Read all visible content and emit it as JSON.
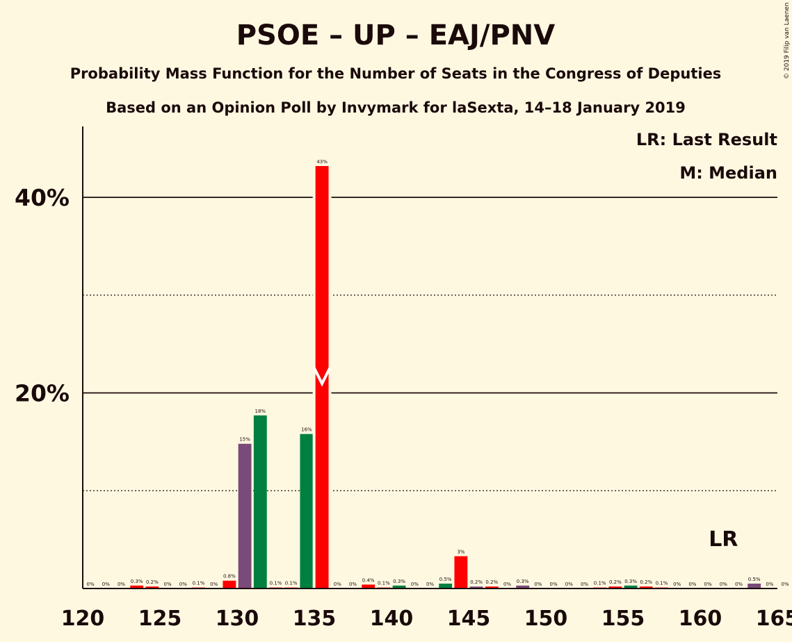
{
  "chart_data": {
    "type": "bar",
    "title": "PSOE – UP – EAJ/PNV",
    "subtitle": "Probability Mass Function for the Number of Seats in the Congress of Deputies",
    "subtitle2": "Based on an Opinion Poll by Invymark for laSexta, 14–18 January 2019",
    "copyright": "© 2019 Filip van Laenen",
    "legend": {
      "last_result": "LR: Last Result",
      "median": "M: Median"
    },
    "lr_label": "LR",
    "xlim": [
      120,
      165
    ],
    "ylim": [
      0,
      47
    ],
    "x_ticks": [
      "120",
      "125",
      "130",
      "135",
      "140",
      "145",
      "150",
      "155",
      "160",
      "165"
    ],
    "y_ticks": [
      {
        "value": 20,
        "label": "20%"
      },
      {
        "value": 40,
        "label": "40%"
      }
    ],
    "y_dotted": [
      10,
      30
    ],
    "median": 135,
    "last_result": 161,
    "colors": {
      "red": "#ff0000",
      "green": "#008040",
      "purple": "#7a4a7a",
      "background": "#fff8e1",
      "text": "#1a0a0a"
    },
    "bars": [
      {
        "seat": 121,
        "value": 0,
        "label": "0%",
        "color": "red"
      },
      {
        "seat": 122,
        "value": 0,
        "label": "0%",
        "color": "red"
      },
      {
        "seat": 123,
        "value": 0,
        "label": "0%",
        "color": "red"
      },
      {
        "seat": 124,
        "value": 0.3,
        "label": "0.3%",
        "color": "red"
      },
      {
        "seat": 125,
        "value": 0.2,
        "label": "0.2%",
        "color": "red"
      },
      {
        "seat": 126,
        "value": 0,
        "label": "0%",
        "color": "red"
      },
      {
        "seat": 127,
        "value": 0,
        "label": "0%",
        "color": "red"
      },
      {
        "seat": 128,
        "value": 0.1,
        "label": "0.1%",
        "color": "red"
      },
      {
        "seat": 129,
        "value": 0,
        "label": "0%",
        "color": "red"
      },
      {
        "seat": 130,
        "value": 0.8,
        "label": "0.8%",
        "color": "red"
      },
      {
        "seat": 131,
        "value": 14.8,
        "label": "15%",
        "color": "purple"
      },
      {
        "seat": 132,
        "value": 17.7,
        "label": "18%",
        "color": "green"
      },
      {
        "seat": 133,
        "value": 0.1,
        "label": "0.1%",
        "color": "red"
      },
      {
        "seat": 134,
        "value": 0.1,
        "label": "0.1%",
        "color": "red"
      },
      {
        "seat": 135,
        "value": 15.8,
        "label": "16%",
        "color": "green"
      },
      {
        "seat": 136,
        "value": 43.2,
        "label": "43%",
        "color": "red"
      },
      {
        "seat": 137,
        "value": 0,
        "label": "0%",
        "color": "red"
      },
      {
        "seat": 138,
        "value": 0,
        "label": "0%",
        "color": "red"
      },
      {
        "seat": 139,
        "value": 0.4,
        "label": "0.4%",
        "color": "red"
      },
      {
        "seat": 140,
        "value": 0.1,
        "label": "0.1%",
        "color": "red"
      },
      {
        "seat": 141,
        "value": 0.3,
        "label": "0.3%",
        "color": "green"
      },
      {
        "seat": 142,
        "value": 0,
        "label": "0%",
        "color": "red"
      },
      {
        "seat": 143,
        "value": 0,
        "label": "0%",
        "color": "red"
      },
      {
        "seat": 144,
        "value": 0.5,
        "label": "0.5%",
        "color": "green"
      },
      {
        "seat": 145,
        "value": 3.3,
        "label": "3%",
        "color": "red"
      },
      {
        "seat": 146,
        "value": 0.2,
        "label": "0.2%",
        "color": "purple"
      },
      {
        "seat": 147,
        "value": 0.2,
        "label": "0.2%",
        "color": "red"
      },
      {
        "seat": 148,
        "value": 0,
        "label": "0%",
        "color": "red"
      },
      {
        "seat": 149,
        "value": 0.3,
        "label": "0.3%",
        "color": "purple"
      },
      {
        "seat": 150,
        "value": 0,
        "label": "0%",
        "color": "red"
      },
      {
        "seat": 151,
        "value": 0,
        "label": "0%",
        "color": "red"
      },
      {
        "seat": 152,
        "value": 0,
        "label": "0%",
        "color": "red"
      },
      {
        "seat": 153,
        "value": 0,
        "label": "0%",
        "color": "red"
      },
      {
        "seat": 154,
        "value": 0.1,
        "label": "0.1%",
        "color": "red"
      },
      {
        "seat": 155,
        "value": 0.2,
        "label": "0.2%",
        "color": "red"
      },
      {
        "seat": 156,
        "value": 0.3,
        "label": "0.3%",
        "color": "green"
      },
      {
        "seat": 157,
        "value": 0.2,
        "label": "0.2%",
        "color": "red"
      },
      {
        "seat": 158,
        "value": 0.1,
        "label": "0.1%",
        "color": "red"
      },
      {
        "seat": 159,
        "value": 0,
        "label": "0%",
        "color": "red"
      },
      {
        "seat": 160,
        "value": 0,
        "label": "0%",
        "color": "red"
      },
      {
        "seat": 161,
        "value": 0,
        "label": "0%",
        "color": "red"
      },
      {
        "seat": 162,
        "value": 0,
        "label": "0%",
        "color": "red"
      },
      {
        "seat": 163,
        "value": 0,
        "label": "0%",
        "color": "red"
      },
      {
        "seat": 164,
        "value": 0.5,
        "label": "0.5%",
        "color": "purple"
      },
      {
        "seat": 165,
        "value": 0,
        "label": "0%",
        "color": "red"
      },
      {
        "seat": 166,
        "value": 0,
        "label": "0%",
        "color": "red"
      }
    ]
  }
}
